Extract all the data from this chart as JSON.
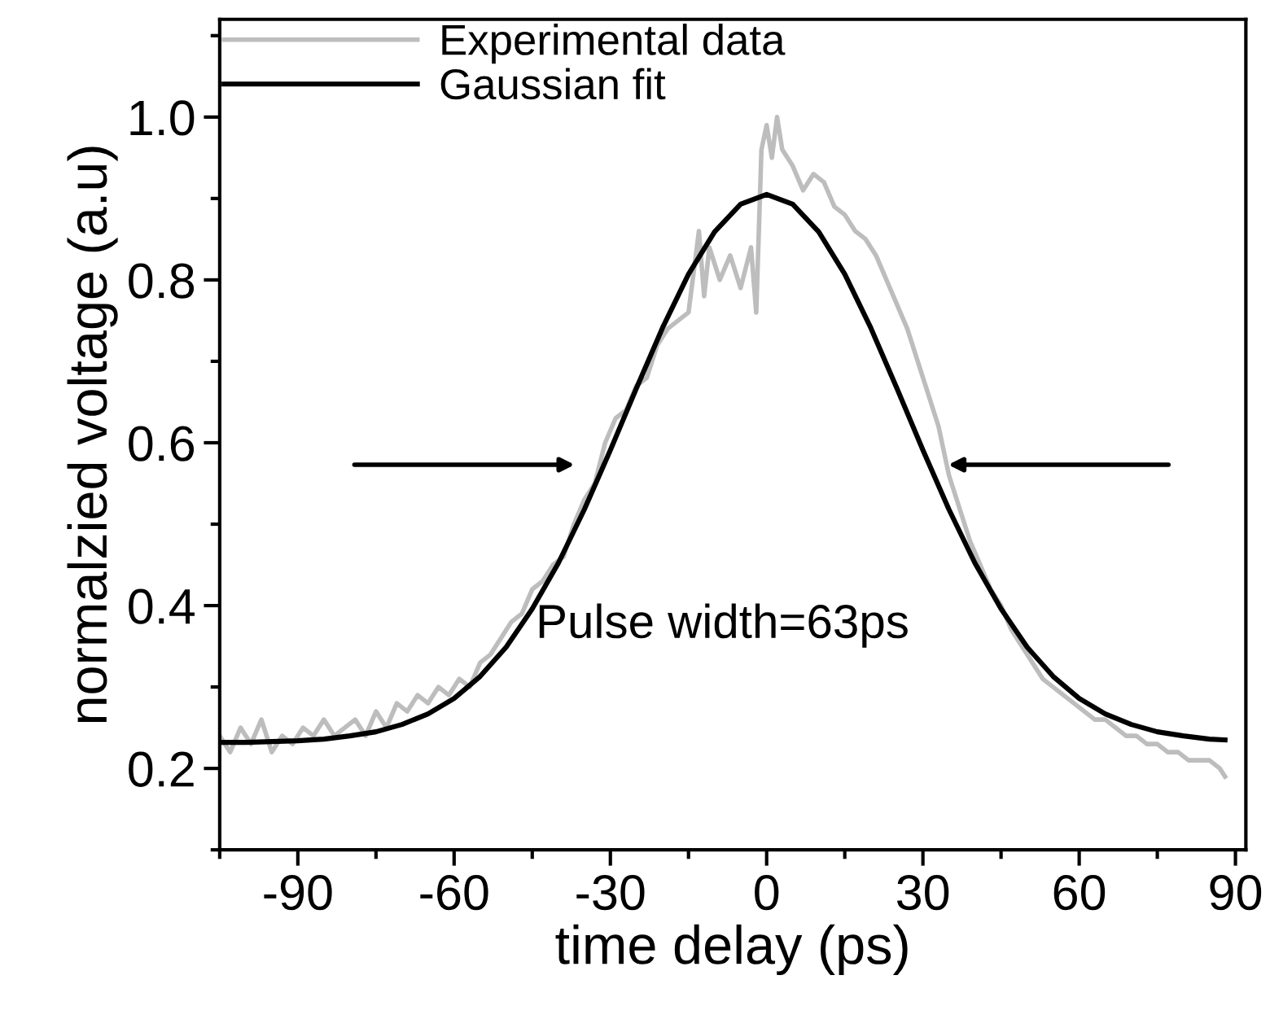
{
  "chart_data": {
    "type": "line",
    "xlabel": "time delay (ps)",
    "ylabel": "normalzied voltage (a.u)",
    "xlim": [
      -105,
      92
    ],
    "xticks": [
      -90,
      -60,
      -30,
      0,
      30,
      60,
      90
    ],
    "ylim": [
      0.1,
      1.12
    ],
    "yticks": [
      0.2,
      0.4,
      0.6,
      0.8,
      {
        "value": 1,
        "label": "1.0"
      }
    ],
    "legend": "top left",
    "grid": false,
    "marker": "none",
    "line_style": "solid",
    "annotations": [
      "Pulse width=63ps"
    ],
    "series": [
      {
        "name": "Experimental data",
        "color": "#bdbdbd",
        "x": [
          -105,
          -103,
          -101,
          -99,
          -97,
          -95,
          -93,
          -91,
          -89,
          -87,
          -85,
          -83,
          -81,
          -79,
          -77,
          -75,
          -73,
          -71,
          -69,
          -67,
          -65,
          -63,
          -61,
          -59,
          -57,
          -55,
          -53,
          -51,
          -49,
          -47,
          -45,
          -43,
          -41,
          -39,
          -37,
          -35,
          -33,
          -31,
          -29,
          -27,
          -25,
          -23,
          -21,
          -19,
          -17,
          -15,
          -13,
          -12,
          -11,
          -9,
          -7,
          -5,
          -3,
          -2,
          -1,
          0,
          1,
          2,
          3,
          5,
          7,
          9,
          11,
          13,
          15,
          17,
          19,
          21,
          23,
          25,
          27,
          29,
          31,
          33,
          35,
          37,
          39,
          41,
          43,
          45,
          47,
          49,
          51,
          53,
          55,
          57,
          59,
          61,
          63,
          65,
          67,
          69,
          71,
          73,
          75,
          77,
          79,
          81,
          83,
          85,
          87,
          88
        ],
        "values": [
          0.24,
          0.22,
          0.25,
          0.23,
          0.26,
          0.22,
          0.24,
          0.23,
          0.25,
          0.24,
          0.26,
          0.24,
          0.25,
          0.26,
          0.24,
          0.27,
          0.25,
          0.28,
          0.27,
          0.29,
          0.28,
          0.3,
          0.29,
          0.31,
          0.3,
          0.33,
          0.34,
          0.36,
          0.38,
          0.39,
          0.42,
          0.43,
          0.45,
          0.46,
          0.5,
          0.53,
          0.55,
          0.6,
          0.63,
          0.64,
          0.67,
          0.68,
          0.72,
          0.74,
          0.75,
          0.76,
          0.86,
          0.78,
          0.84,
          0.8,
          0.83,
          0.79,
          0.84,
          0.76,
          0.96,
          0.99,
          0.95,
          1.0,
          0.96,
          0.94,
          0.91,
          0.93,
          0.92,
          0.89,
          0.88,
          0.86,
          0.85,
          0.83,
          0.8,
          0.77,
          0.74,
          0.7,
          0.66,
          0.62,
          0.56,
          0.52,
          0.48,
          0.45,
          0.42,
          0.4,
          0.37,
          0.35,
          0.33,
          0.31,
          0.3,
          0.29,
          0.28,
          0.27,
          0.26,
          0.26,
          0.25,
          0.24,
          0.24,
          0.23,
          0.23,
          0.22,
          0.22,
          0.21,
          0.21,
          0.21,
          0.2,
          0.19
        ]
      },
      {
        "name": "Gaussian fit",
        "color": "#000000",
        "x": [
          -105,
          -100,
          -95,
          -90,
          -85,
          -80,
          -75,
          -70,
          -65,
          -60,
          -55,
          -50,
          -45,
          -40,
          -35,
          -30,
          -25,
          -20,
          -15,
          -10,
          -5,
          0,
          5,
          10,
          15,
          20,
          25,
          30,
          35,
          40,
          45,
          50,
          55,
          60,
          65,
          70,
          75,
          80,
          85,
          88
        ],
        "values": [
          0.232,
          0.232,
          0.233,
          0.234,
          0.236,
          0.24,
          0.245,
          0.254,
          0.267,
          0.286,
          0.313,
          0.349,
          0.396,
          0.452,
          0.518,
          0.591,
          0.667,
          0.741,
          0.807,
          0.859,
          0.893,
          0.905,
          0.893,
          0.859,
          0.807,
          0.741,
          0.667,
          0.591,
          0.518,
          0.452,
          0.396,
          0.349,
          0.313,
          0.286,
          0.267,
          0.254,
          0.245,
          0.24,
          0.236,
          0.235
        ]
      }
    ]
  }
}
